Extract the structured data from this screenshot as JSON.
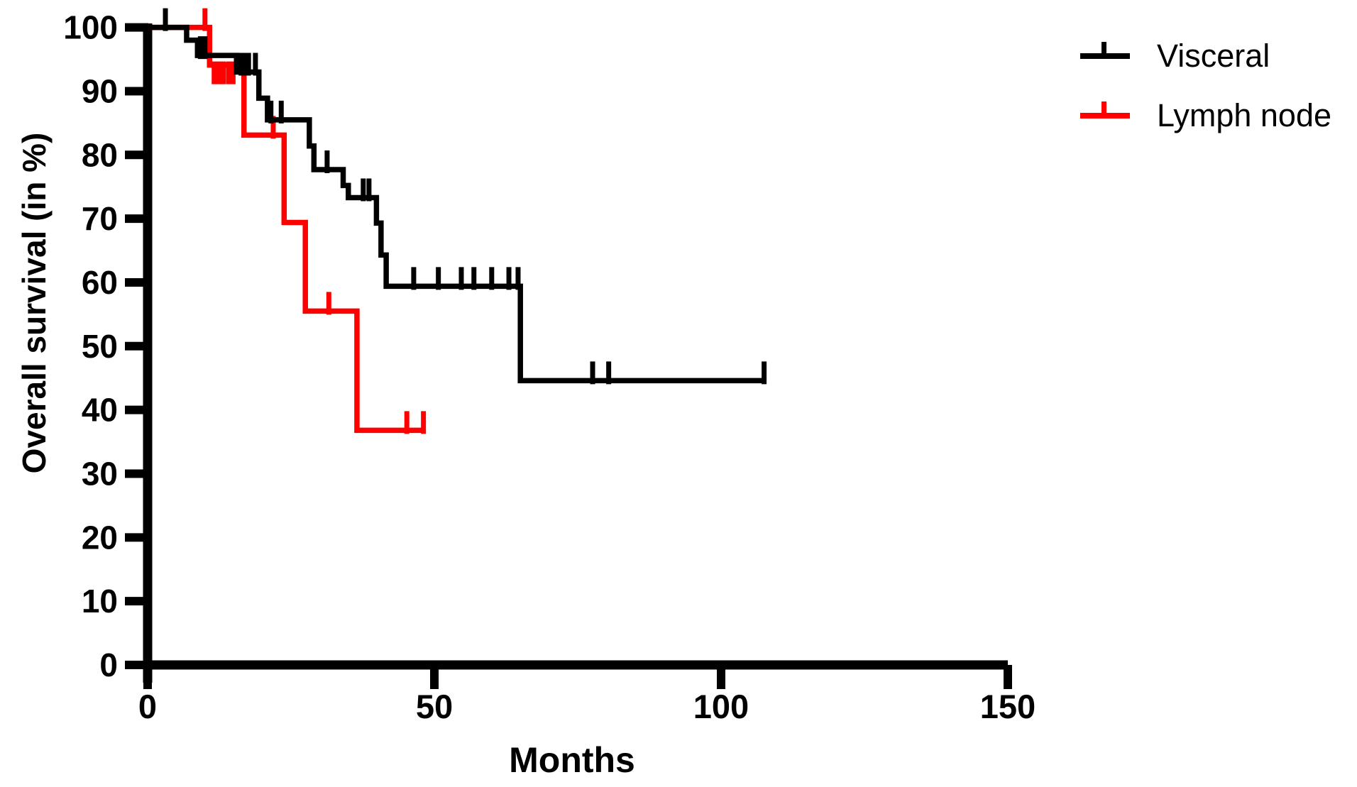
{
  "chart_data": {
    "type": "line",
    "variant": "kaplan_meier_step_curve",
    "title": "",
    "xlabel": "Months",
    "ylabel": "Overall survival (in %)",
    "xlim": [
      0,
      150
    ],
    "ylim": [
      0,
      100
    ],
    "xticks": [
      0,
      50,
      100,
      150
    ],
    "yticks": [
      0,
      10,
      20,
      30,
      40,
      50,
      60,
      70,
      80,
      90,
      100
    ],
    "grid": false,
    "legend_position": "top-right",
    "axis_color": "#000000",
    "series": [
      {
        "name": "Visceral",
        "color": "#000000",
        "steps": [
          [
            0,
            100
          ],
          [
            6.8,
            98.0
          ],
          [
            8.7,
            95.6
          ],
          [
            15.5,
            93.0
          ],
          [
            19.4,
            88.9
          ],
          [
            20.9,
            85.5
          ],
          [
            28.2,
            81.4
          ],
          [
            29.0,
            77.7
          ],
          [
            34.1,
            75.2
          ],
          [
            35.0,
            73.3
          ],
          [
            39.9,
            69.3
          ],
          [
            40.7,
            64.3
          ],
          [
            41.6,
            59.4
          ],
          [
            65.0,
            44.6
          ]
        ],
        "end_x": 107.5,
        "censors": [
          {
            "x": 3.1,
            "y": 100,
            "dir": "up"
          },
          {
            "x": 9.2,
            "y": 95.6,
            "dir": "up"
          },
          {
            "x": 10.0,
            "y": 95.6,
            "dir": "up"
          },
          {
            "x": 16.3,
            "y": 93.0,
            "dir": "up"
          },
          {
            "x": 17.0,
            "y": 93.0,
            "dir": "up"
          },
          {
            "x": 17.6,
            "y": 93.0,
            "dir": "up"
          },
          {
            "x": 18.8,
            "y": 93.0,
            "dir": "up"
          },
          {
            "x": 21.5,
            "y": 85.5,
            "dir": "up"
          },
          {
            "x": 23.3,
            "y": 85.5,
            "dir": "up"
          },
          {
            "x": 31.3,
            "y": 77.7,
            "dir": "up"
          },
          {
            "x": 37.6,
            "y": 73.3,
            "dir": "up"
          },
          {
            "x": 38.6,
            "y": 73.3,
            "dir": "up"
          },
          {
            "x": 46.4,
            "y": 59.4,
            "dir": "up"
          },
          {
            "x": 50.7,
            "y": 59.4,
            "dir": "up"
          },
          {
            "x": 54.7,
            "y": 59.4,
            "dir": "up"
          },
          {
            "x": 56.9,
            "y": 59.4,
            "dir": "up"
          },
          {
            "x": 60.0,
            "y": 59.4,
            "dir": "up"
          },
          {
            "x": 63.0,
            "y": 59.4,
            "dir": "up"
          },
          {
            "x": 64.6,
            "y": 59.4,
            "dir": "up"
          },
          {
            "x": 77.6,
            "y": 44.6,
            "dir": "up"
          },
          {
            "x": 80.4,
            "y": 44.6,
            "dir": "up"
          },
          {
            "x": 107.5,
            "y": 44.6,
            "dir": "up"
          }
        ]
      },
      {
        "name": "Lymph node",
        "color": "#FF0000",
        "steps": [
          [
            0,
            100
          ],
          [
            10.8,
            94.1
          ],
          [
            16.8,
            83.1
          ],
          [
            23.8,
            69.4
          ],
          [
            27.5,
            55.5
          ],
          [
            36.5,
            36.8
          ]
        ],
        "end_x": 48.1,
        "censors": [
          {
            "x": 10.0,
            "y": 100,
            "dir": "up"
          },
          {
            "x": 11.6,
            "y": 94.1,
            "dir": "down"
          },
          {
            "x": 12.4,
            "y": 94.1,
            "dir": "down"
          },
          {
            "x": 13.2,
            "y": 94.1,
            "dir": "down"
          },
          {
            "x": 14.1,
            "y": 94.1,
            "dir": "down"
          },
          {
            "x": 14.9,
            "y": 94.1,
            "dir": "down"
          },
          {
            "x": 21.9,
            "y": 83.1,
            "dir": "up"
          },
          {
            "x": 31.6,
            "y": 55.5,
            "dir": "up"
          },
          {
            "x": 45.2,
            "y": 36.8,
            "dir": "up"
          },
          {
            "x": 48.1,
            "y": 36.8,
            "dir": "up"
          }
        ]
      }
    ]
  }
}
